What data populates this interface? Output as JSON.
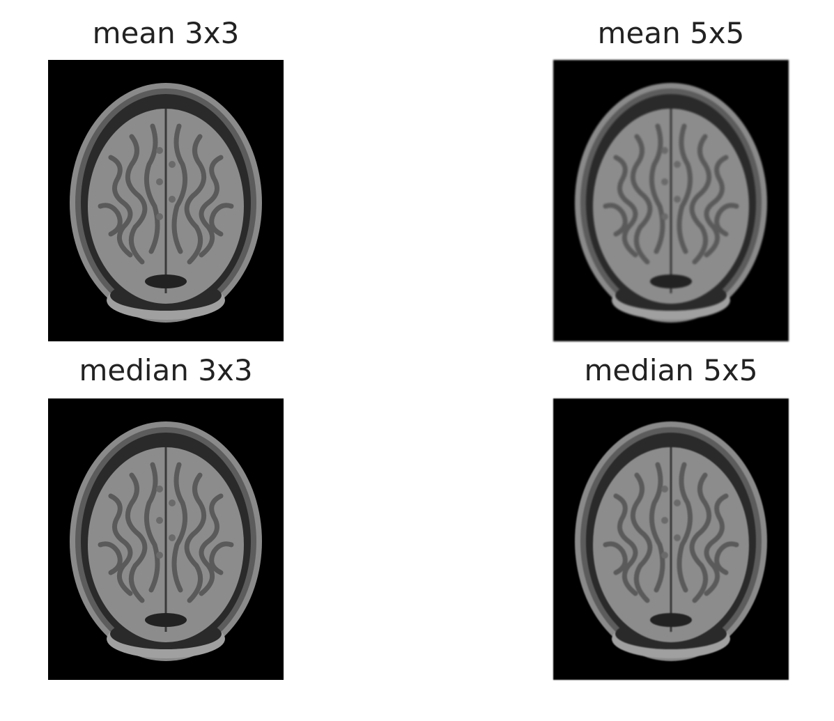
{
  "panels": [
    {
      "title": "mean 3x3",
      "image": "mri-brain-axial-slice",
      "filter": "mean",
      "kernel": "3x3"
    },
    {
      "title": "mean 5x5",
      "image": "mri-brain-axial-slice",
      "filter": "mean",
      "kernel": "5x5"
    },
    {
      "title": "median 3x3",
      "image": "mri-brain-axial-slice",
      "filter": "median",
      "kernel": "3x3"
    },
    {
      "title": "median 5x5",
      "image": "mri-brain-axial-slice",
      "filter": "median",
      "kernel": "5x5"
    }
  ],
  "colors": {
    "background": "#ffffff",
    "image_background": "#000000",
    "title_text": "#222222"
  }
}
